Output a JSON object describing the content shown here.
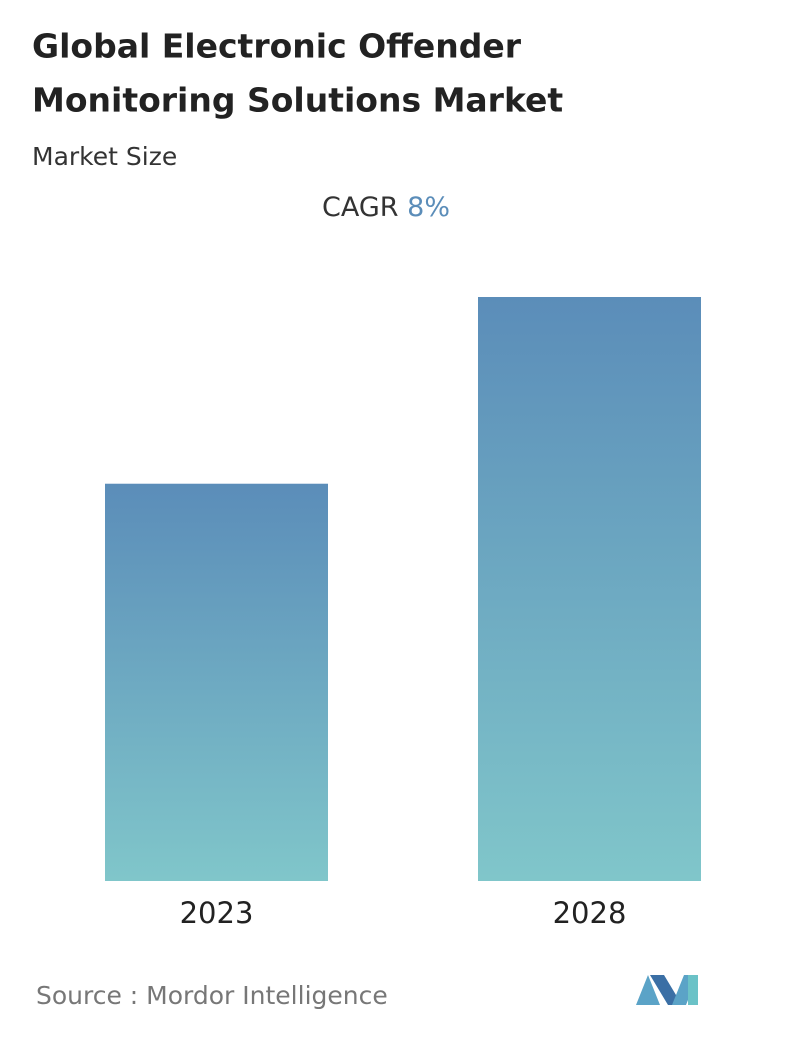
{
  "chart_data": {
    "type": "bar",
    "title_lines": [
      "Global Electronic Offender",
      "Monitoring Solutions Market"
    ],
    "subtitle": "Market Size",
    "cagr_label": "CAGR",
    "cagr_value": "8%",
    "categories": [
      "2023",
      "2028"
    ],
    "values": [
      1.0,
      1.47
    ],
    "color_top": "#5b8db9",
    "color_bottom": "#80c6ca",
    "source": "Source :  Mordor Intelligence"
  }
}
